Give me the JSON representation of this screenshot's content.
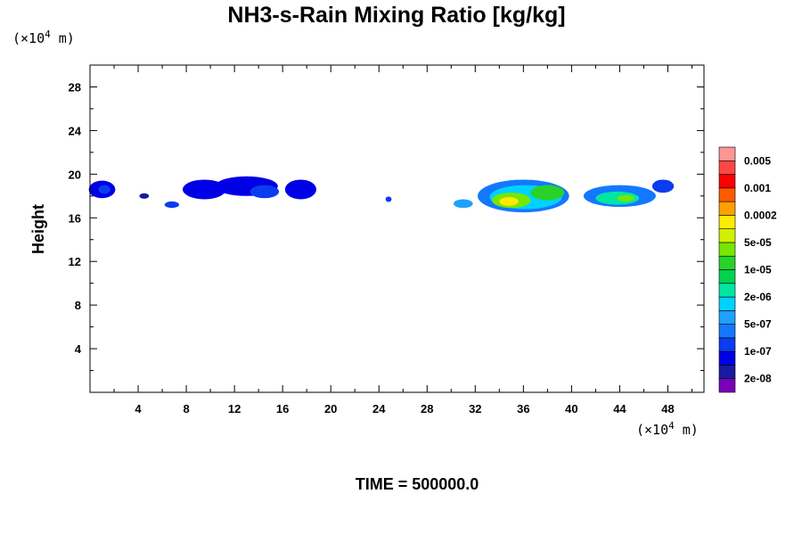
{
  "chart_data": {
    "type": "heatmap",
    "title": "NH3-s-Rain Mixing Ratio [kg/kg]",
    "xlabel": "",
    "ylabel": "Height",
    "x_unit": {
      "prefix": "(×10",
      "exp": "4",
      "suffix": " m)"
    },
    "y_unit": {
      "prefix": "(×10",
      "exp": "4",
      "suffix": " m)"
    },
    "xlim": [
      0,
      51
    ],
    "ylim": [
      0,
      30
    ],
    "x_ticks": [
      4,
      8,
      12,
      16,
      20,
      24,
      28,
      32,
      36,
      40,
      44,
      48
    ],
    "y_ticks": [
      4,
      8,
      12,
      16,
      20,
      24,
      28
    ],
    "colorbar": {
      "colors": [
        "#7b00b8",
        "#1a1aa0",
        "#0000e6",
        "#0a3cf0",
        "#1478ff",
        "#1ea0ff",
        "#00d2ff",
        "#00e6a0",
        "#00d250",
        "#28d228",
        "#78e600",
        "#d2f000",
        "#ffeb00",
        "#ffa000",
        "#ff5a00",
        "#ff0000",
        "#ff4646",
        "#ff9696"
      ],
      "labels": [
        "2e-08",
        "1e-07",
        "5e-07",
        "2e-06",
        "1e-05",
        "5e-05",
        "0.0002",
        "0.001",
        "0.005"
      ]
    },
    "features": [
      {
        "x": 1.0,
        "y": 18.6,
        "rx": 1.1,
        "ry": 0.8,
        "level": 2
      },
      {
        "x": 1.2,
        "y": 18.6,
        "rx": 0.5,
        "ry": 0.4,
        "level": 3
      },
      {
        "x": 4.5,
        "y": 18.0,
        "rx": 0.4,
        "ry": 0.25,
        "level": 1
      },
      {
        "x": 6.8,
        "y": 17.2,
        "rx": 0.6,
        "ry": 0.3,
        "level": 3
      },
      {
        "x": 9.5,
        "y": 18.6,
        "rx": 1.8,
        "ry": 0.9,
        "level": 2
      },
      {
        "x": 13.0,
        "y": 18.9,
        "rx": 2.6,
        "ry": 0.9,
        "level": 2
      },
      {
        "x": 14.5,
        "y": 18.4,
        "rx": 1.2,
        "ry": 0.6,
        "level": 3
      },
      {
        "x": 17.5,
        "y": 18.6,
        "rx": 1.3,
        "ry": 0.9,
        "level": 2
      },
      {
        "x": 24.8,
        "y": 17.7,
        "rx": 0.25,
        "ry": 0.25,
        "level": 3
      },
      {
        "x": 31.0,
        "y": 17.3,
        "rx": 0.8,
        "ry": 0.4,
        "level": 5
      },
      {
        "x": 36.0,
        "y": 18.0,
        "rx": 3.8,
        "ry": 1.5,
        "level": 4
      },
      {
        "x": 36.2,
        "y": 17.9,
        "rx": 3.0,
        "ry": 1.1,
        "level": 6
      },
      {
        "x": 35.0,
        "y": 17.6,
        "rx": 1.6,
        "ry": 0.7,
        "level": 10
      },
      {
        "x": 34.8,
        "y": 17.5,
        "rx": 0.8,
        "ry": 0.4,
        "level": 12
      },
      {
        "x": 38.0,
        "y": 18.3,
        "rx": 1.4,
        "ry": 0.7,
        "level": 9
      },
      {
        "x": 44.0,
        "y": 18.0,
        "rx": 3.0,
        "ry": 1.0,
        "level": 4
      },
      {
        "x": 43.8,
        "y": 17.8,
        "rx": 1.8,
        "ry": 0.6,
        "level": 7
      },
      {
        "x": 44.5,
        "y": 17.8,
        "rx": 0.7,
        "ry": 0.3,
        "level": 10
      },
      {
        "x": 47.6,
        "y": 18.9,
        "rx": 0.9,
        "ry": 0.6,
        "level": 3
      }
    ]
  },
  "footer": {
    "time_label": "TIME = 500000.0"
  }
}
